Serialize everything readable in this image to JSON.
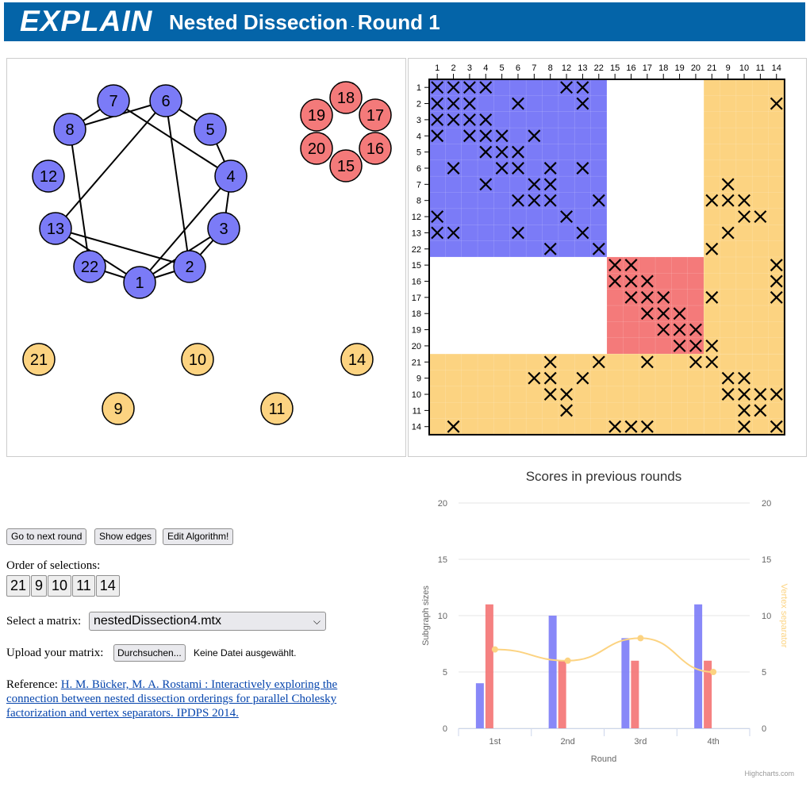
{
  "header": {
    "logo": "EXPLAIN",
    "title_main": "Nested Dissection",
    "title_sep": "-",
    "title_round": "Round 1"
  },
  "colors": {
    "header_bg": "#0464a8",
    "blue": "#7b7bf7",
    "red": "#f47a7a",
    "orange": "#fcd381"
  },
  "graph": {
    "nodes": [
      {
        "label": "7",
        "group": "blue"
      },
      {
        "label": "6",
        "group": "blue"
      },
      {
        "label": "8",
        "group": "blue"
      },
      {
        "label": "5",
        "group": "blue"
      },
      {
        "label": "12",
        "group": "blue"
      },
      {
        "label": "4",
        "group": "blue"
      },
      {
        "label": "13",
        "group": "blue"
      },
      {
        "label": "3",
        "group": "blue"
      },
      {
        "label": "22",
        "group": "blue"
      },
      {
        "label": "2",
        "group": "blue"
      },
      {
        "label": "1",
        "group": "blue"
      },
      {
        "label": "18",
        "group": "red"
      },
      {
        "label": "19",
        "group": "red"
      },
      {
        "label": "17",
        "group": "red"
      },
      {
        "label": "20",
        "group": "red"
      },
      {
        "label": "16",
        "group": "red"
      },
      {
        "label": "15",
        "group": "red"
      },
      {
        "label": "21",
        "group": "orange"
      },
      {
        "label": "10",
        "group": "orange"
      },
      {
        "label": "14",
        "group": "orange"
      },
      {
        "label": "9",
        "group": "orange"
      },
      {
        "label": "11",
        "group": "orange"
      }
    ],
    "edges": [
      [
        "8",
        "7"
      ],
      [
        "8",
        "6"
      ],
      [
        "8",
        "22"
      ],
      [
        "7",
        "4"
      ],
      [
        "6",
        "5"
      ],
      [
        "6",
        "13"
      ],
      [
        "6",
        "2"
      ],
      [
        "5",
        "4"
      ],
      [
        "4",
        "3"
      ],
      [
        "4",
        "1"
      ],
      [
        "3",
        "2"
      ],
      [
        "3",
        "1"
      ],
      [
        "13",
        "2"
      ],
      [
        "13",
        "1"
      ],
      [
        "22",
        "1"
      ],
      [
        "2",
        "1"
      ]
    ]
  },
  "matrix": {
    "labels": [
      "1",
      "2",
      "3",
      "4",
      "5",
      "6",
      "7",
      "8",
      "12",
      "13",
      "22",
      "15",
      "16",
      "17",
      "18",
      "19",
      "20",
      "21",
      "9",
      "10",
      "11",
      "14"
    ],
    "blocks": [
      {
        "color": "blue",
        "start": 0,
        "end": 10
      },
      {
        "color": "red",
        "start": 11,
        "end": 16
      },
      {
        "color": "orange",
        "start": 17,
        "end": 21
      }
    ],
    "x_marks": [
      [
        0,
        0
      ],
      [
        0,
        1
      ],
      [
        0,
        2
      ],
      [
        0,
        3
      ],
      [
        0,
        8
      ],
      [
        0,
        9
      ],
      [
        1,
        0
      ],
      [
        1,
        1
      ],
      [
        1,
        2
      ],
      [
        1,
        5
      ],
      [
        1,
        9
      ],
      [
        1,
        21
      ],
      [
        2,
        0
      ],
      [
        2,
        1
      ],
      [
        2,
        2
      ],
      [
        2,
        3
      ],
      [
        3,
        0
      ],
      [
        3,
        2
      ],
      [
        3,
        3
      ],
      [
        3,
        4
      ],
      [
        3,
        6
      ],
      [
        4,
        3
      ],
      [
        4,
        4
      ],
      [
        4,
        5
      ],
      [
        5,
        1
      ],
      [
        5,
        4
      ],
      [
        5,
        5
      ],
      [
        5,
        7
      ],
      [
        5,
        9
      ],
      [
        6,
        3
      ],
      [
        6,
        6
      ],
      [
        6,
        7
      ],
      [
        6,
        18
      ],
      [
        7,
        5
      ],
      [
        7,
        6
      ],
      [
        7,
        7
      ],
      [
        7,
        10
      ],
      [
        7,
        17
      ],
      [
        7,
        18
      ],
      [
        7,
        19
      ],
      [
        8,
        0
      ],
      [
        8,
        8
      ],
      [
        8,
        19
      ],
      [
        8,
        20
      ],
      [
        9,
        0
      ],
      [
        9,
        1
      ],
      [
        9,
        5
      ],
      [
        9,
        9
      ],
      [
        9,
        18
      ],
      [
        10,
        7
      ],
      [
        10,
        10
      ],
      [
        10,
        17
      ],
      [
        11,
        11
      ],
      [
        11,
        12
      ],
      [
        11,
        21
      ],
      [
        12,
        11
      ],
      [
        12,
        12
      ],
      [
        12,
        13
      ],
      [
        12,
        21
      ],
      [
        13,
        12
      ],
      [
        13,
        13
      ],
      [
        13,
        14
      ],
      [
        13,
        17
      ],
      [
        13,
        21
      ],
      [
        14,
        13
      ],
      [
        14,
        14
      ],
      [
        14,
        15
      ],
      [
        15,
        14
      ],
      [
        15,
        15
      ],
      [
        15,
        16
      ],
      [
        16,
        15
      ],
      [
        16,
        16
      ],
      [
        16,
        17
      ],
      [
        17,
        7
      ],
      [
        17,
        10
      ],
      [
        17,
        13
      ],
      [
        17,
        16
      ],
      [
        17,
        17
      ],
      [
        18,
        6
      ],
      [
        18,
        7
      ],
      [
        18,
        9
      ],
      [
        18,
        18
      ],
      [
        18,
        19
      ],
      [
        19,
        7
      ],
      [
        19,
        8
      ],
      [
        19,
        18
      ],
      [
        19,
        19
      ],
      [
        19,
        20
      ],
      [
        19,
        21
      ],
      [
        20,
        8
      ],
      [
        20,
        19
      ],
      [
        20,
        20
      ],
      [
        21,
        1
      ],
      [
        21,
        11
      ],
      [
        21,
        12
      ],
      [
        21,
        13
      ],
      [
        21,
        19
      ],
      [
        21,
        21
      ]
    ]
  },
  "controls": {
    "next_round": "Go to next round",
    "show_edges": "Show edges",
    "edit_algorithm": "Edit Algorithm!",
    "order_label": "Order of selections:",
    "order_items": [
      "21",
      "9",
      "10",
      "11",
      "14"
    ],
    "select_label": "Select a matrix:",
    "select_value": "nestedDissection4.mtx",
    "upload_label": "Upload your matrix:",
    "upload_button": "Durchsuchen...",
    "no_file": "Keine Datei ausgewählt.",
    "reference_prefix": "Reference:",
    "reference_link": "H. M. Bücker, M. A. Rostami : Interactively exploring the connection between nested dissection orderings for parallel Cholesky factorization and vertex separators. IPDPS 2014."
  },
  "chart_data": {
    "type": "bar",
    "title": "Scores in previous rounds",
    "xlabel": "Round",
    "ylabel": "Subgraph sizes",
    "y2label": "Vertex separator",
    "categories": [
      "1st",
      "2nd",
      "3rd",
      "4th"
    ],
    "ylim": [
      0,
      20
    ],
    "yticks": [
      "0",
      "5",
      "10",
      "15",
      "20"
    ],
    "series": [
      {
        "type": "bar",
        "color": "#7b7bf7",
        "values": [
          4,
          10,
          8,
          11
        ]
      },
      {
        "type": "bar",
        "color": "#f47a7a",
        "values": [
          11,
          6,
          6,
          6
        ]
      },
      {
        "type": "spline",
        "color": "#fcd381",
        "axis": "right",
        "values": [
          7,
          6,
          8,
          5
        ]
      }
    ],
    "credits": "Highcharts.com"
  }
}
